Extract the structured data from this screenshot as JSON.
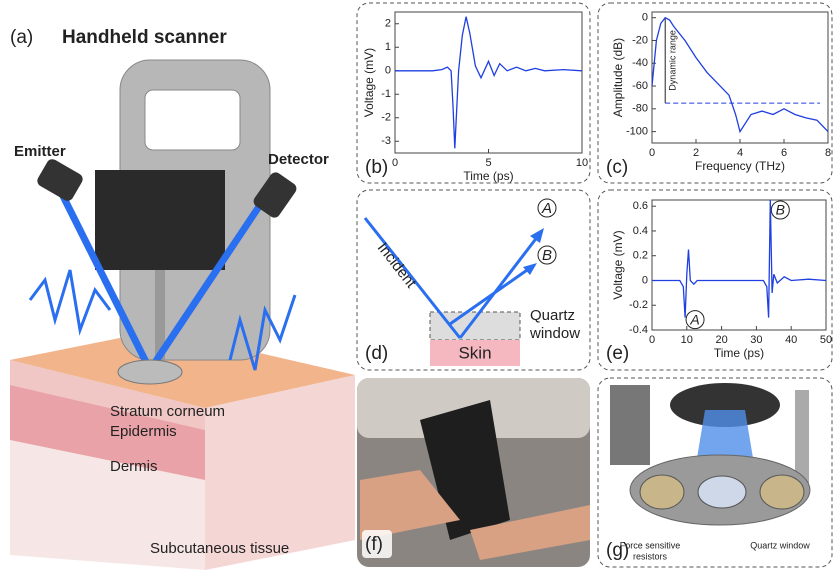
{
  "panels": {
    "a": {
      "label": "(a)",
      "title": "Handheld scanner",
      "emitter": "Emitter",
      "detector": "Detector",
      "layers": [
        "Stratum corneum",
        "Epidermis",
        "Dermis",
        "Subcutaneous tissue"
      ]
    },
    "d": {
      "label": "(d)",
      "incident": "Incident",
      "reflection_a": "A",
      "reflection_b": "B",
      "window": [
        "Quartz",
        "window"
      ],
      "skin": "Skin"
    },
    "f": {
      "label": "(f)"
    },
    "g": {
      "label": "(g)",
      "sensors": [
        "Force sensitive",
        "resistors"
      ],
      "window": "Quartz window"
    }
  },
  "chart_data": [
    {
      "type": "line",
      "panel_label": "(b)",
      "x_label": "Time (ps)",
      "y_label": "Voltage (mV)",
      "xlim": [
        0,
        10
      ],
      "xticks": [
        0,
        5,
        10
      ],
      "ylim": [
        -3.5,
        2.5
      ],
      "yticks": [
        -3,
        -2,
        -1,
        0,
        1,
        2
      ],
      "series": [
        {
          "color": "#1f3fe0",
          "x": [
            0,
            1,
            2,
            2.5,
            2.8,
            3.0,
            3.1,
            3.2,
            3.4,
            3.6,
            3.8,
            4.0,
            4.3,
            4.6,
            5.0,
            5.3,
            5.6,
            6,
            6.5,
            7,
            7.5,
            8,
            9,
            10
          ],
          "values": [
            0,
            0,
            0,
            0.05,
            0.15,
            0,
            -1.5,
            -3.3,
            0,
            1.5,
            2.3,
            1.6,
            0.2,
            -0.3,
            0.4,
            -0.2,
            0.3,
            0,
            0.15,
            0,
            0.1,
            0,
            0.05,
            0
          ]
        }
      ]
    },
    {
      "type": "line",
      "panel_label": "(c)",
      "x_label": "Frequency (THz)",
      "y_label": "Amplitude (dB)",
      "xlim": [
        0,
        8
      ],
      "xticks": [
        0,
        2,
        4,
        6,
        8
      ],
      "ylim": [
        -110,
        5
      ],
      "yticks": [
        -100,
        -80,
        -60,
        -40,
        -20,
        0
      ],
      "annotation": "Dynamic range",
      "reference_y": -75,
      "series": [
        {
          "color": "#1f3fe0",
          "x": [
            0,
            0.2,
            0.4,
            0.6,
            0.8,
            1,
            1.5,
            2,
            2.5,
            3,
            3.5,
            3.8,
            4,
            4.5,
            5,
            5.5,
            6,
            6.5,
            7,
            7.5,
            8
          ],
          "values": [
            -60,
            -20,
            -5,
            0,
            -2,
            -8,
            -20,
            -35,
            -48,
            -58,
            -68,
            -85,
            -100,
            -85,
            -82,
            -85,
            -80,
            -85,
            -88,
            -90,
            -100
          ]
        }
      ]
    },
    {
      "type": "line",
      "panel_label": "(e)",
      "x_label": "Time (ps)",
      "y_label": "Voltage (mV)",
      "xlim": [
        0,
        50
      ],
      "xticks": [
        0,
        10,
        20,
        30,
        40,
        50
      ],
      "ylim": [
        -0.4,
        0.65
      ],
      "yticks": [
        -0.4,
        -0.2,
        0,
        0.2,
        0.4,
        0.6
      ],
      "point_labels": [
        "A",
        "B"
      ],
      "series": [
        {
          "color": "#1f3fe0",
          "x": [
            0,
            8,
            9,
            9.5,
            10,
            10.5,
            11,
            12,
            13,
            15,
            20,
            30,
            32,
            33,
            33.5,
            34,
            34.5,
            35,
            36,
            38,
            40,
            45,
            50
          ],
          "values": [
            0,
            0,
            -0.05,
            -0.3,
            0.05,
            0.25,
            0,
            -0.03,
            0,
            0,
            0,
            0,
            0,
            -0.05,
            -0.3,
            0.65,
            -0.1,
            0.05,
            -0.02,
            0.03,
            0,
            0.01,
            0
          ]
        }
      ]
    }
  ]
}
